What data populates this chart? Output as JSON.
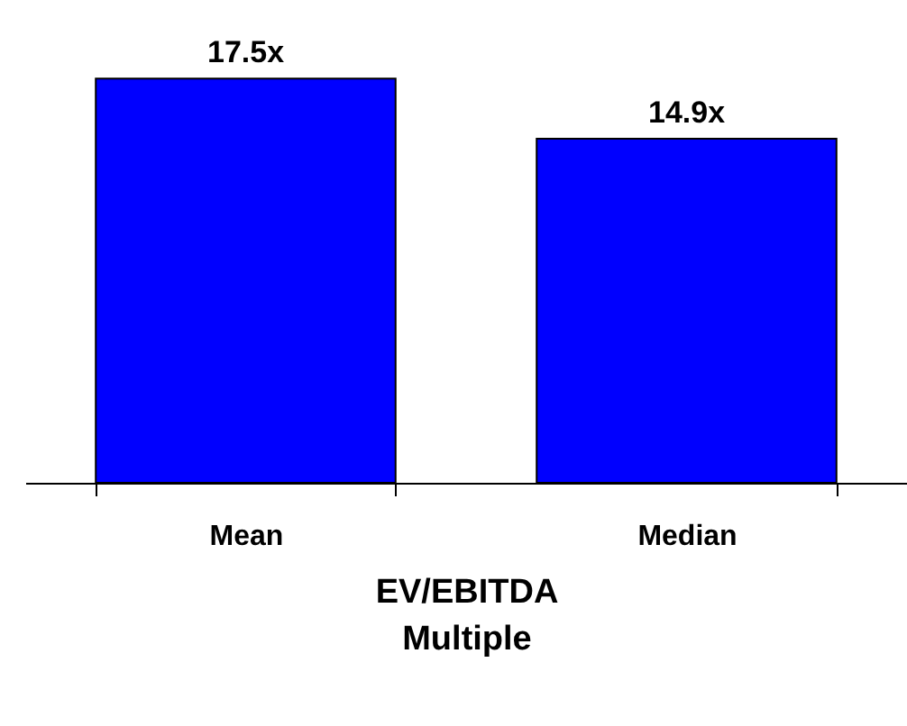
{
  "chart_data": {
    "type": "bar",
    "xlabel": "EV/EBITDA\nMultiple",
    "categories": [
      "Mean",
      "Median"
    ],
    "values": [
      17.5,
      14.9
    ],
    "value_labels": [
      "17.5x",
      "14.9x"
    ],
    "color": "#0000ff"
  }
}
